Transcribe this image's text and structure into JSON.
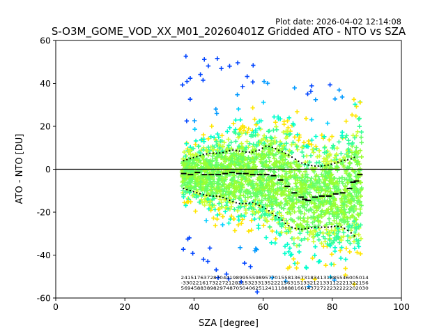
{
  "plot_date": "Plot date: 2026-04-02 12:14:08",
  "chart_data": {
    "type": "scatter",
    "title": "S-O3M_GOME_VOD_XX_M01_20260401Z Gridded ATO - NTO vs SZA",
    "xlabel": "SZA [degree]",
    "ylabel": "ATO - NTO [DU]",
    "xlim": [
      0,
      100
    ],
    "ylim": [
      -60,
      60
    ],
    "xticks": [
      0,
      20,
      40,
      60,
      80,
      100
    ],
    "yticks": [
      -60,
      -40,
      -20,
      0,
      20,
      40,
      60
    ],
    "reference_line_y": 0,
    "colors": {
      "point_palette": [
        "#00ffcc",
        "#33ff99",
        "#66ff66",
        "#99ff33",
        "#ccff33",
        "#ffe600",
        "#00ccff",
        "#0099ff",
        "#0044ff"
      ],
      "mean_marker": "#000000",
      "reference_line": "#000000"
    },
    "point_cloud": {
      "sza_min": 36.5,
      "sza_max": 88.5,
      "marker": "+",
      "description_values": "dense gridded ATO-NTO points"
    },
    "median_line": {
      "x": [
        37,
        39,
        41,
        43,
        45,
        47,
        49,
        51,
        53,
        55,
        57,
        59,
        61,
        63,
        65,
        67,
        69,
        71,
        72,
        73,
        75,
        77,
        79,
        81,
        83,
        85,
        86,
        87,
        88
      ],
      "y": [
        -2,
        -2.5,
        -1.5,
        -2.5,
        -2.5,
        -2.5,
        -2,
        -1.5,
        -2,
        -2,
        -2.5,
        -2.5,
        -2.5,
        -3,
        -5,
        -8,
        -11,
        -13,
        -14,
        -14.5,
        -13,
        -12.5,
        -12.5,
        -11.5,
        -11,
        -9,
        -6,
        -5.5,
        -2.5
      ]
    },
    "upper_line": {
      "x": [
        37,
        39,
        41,
        43,
        45,
        47,
        49,
        51,
        53,
        55,
        57,
        59,
        61,
        63,
        65,
        67,
        69,
        71,
        73,
        75,
        77,
        79,
        81,
        83,
        85,
        87
      ],
      "y": [
        4,
        5,
        6,
        7,
        7.5,
        7.5,
        8,
        9,
        8.5,
        8,
        8,
        9,
        11,
        10,
        8.5,
        7,
        5,
        3,
        2,
        1.5,
        1.5,
        2,
        3,
        4,
        4.5,
        6
      ]
    },
    "lower_line": {
      "x": [
        37,
        39,
        41,
        43,
        45,
        47,
        49,
        51,
        53,
        55,
        57,
        59,
        61,
        63,
        65,
        67,
        69,
        71,
        73,
        75,
        77,
        79,
        81,
        83,
        85,
        87
      ],
      "y": [
        -9,
        -10,
        -11,
        -12,
        -12.5,
        -12.5,
        -13.5,
        -15,
        -16,
        -16,
        -15.5,
        -17,
        -18.5,
        -21,
        -23,
        -26,
        -27.5,
        -28,
        -27.5,
        -27,
        -27,
        -27,
        -26.5,
        -27,
        -29,
        -32
      ]
    },
    "count_rows": [
      "2415176372870441989955598957701558136731834131885546005014",
      "-330221617322721282153233135222156315133212133112221322156",
      "5694588389829748705040625124111888816614372722232222202030"
    ]
  }
}
